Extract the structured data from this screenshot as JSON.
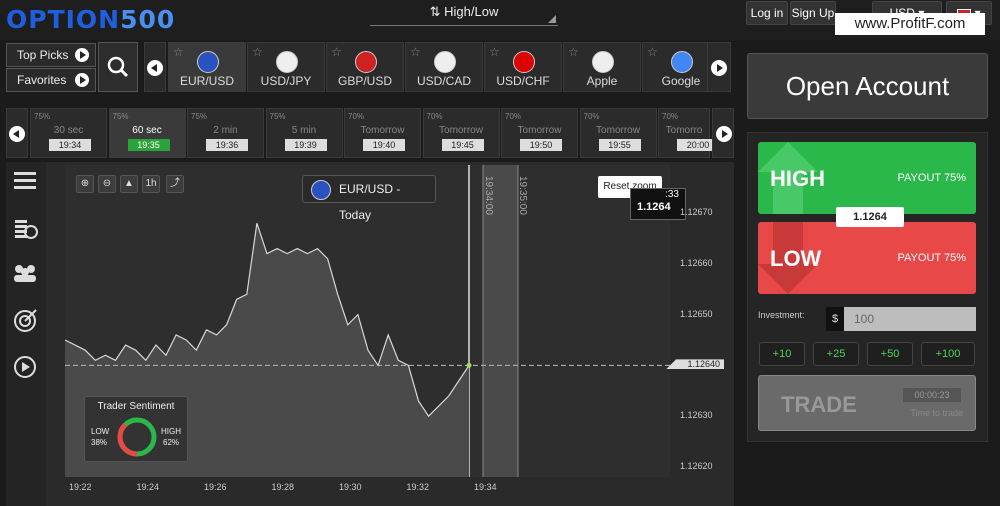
{
  "header": {
    "logo_a": "OPTION",
    "logo_b": "500",
    "asset_type": "High/Low",
    "login": "Log in",
    "signup": "Sign Up",
    "currency": "USD",
    "watermark": "www.ProfitF.com"
  },
  "picks": {
    "top": "Top Picks",
    "fav": "Favorites"
  },
  "assets": [
    {
      "label": "EUR/USD",
      "icon": "eu-us-flags"
    },
    {
      "label": "USD/JPY",
      "icon": "us-jp-flags"
    },
    {
      "label": "GBP/USD",
      "icon": "gb-us-flags"
    },
    {
      "label": "USD/CAD",
      "icon": "us-ca-flags"
    },
    {
      "label": "USD/CHF",
      "icon": "us-ch-flags"
    },
    {
      "label": "Apple",
      "icon": "apple-logo"
    },
    {
      "label": "Google",
      "icon": "google-logo"
    }
  ],
  "expiries": [
    {
      "pct": "75%",
      "label": "30 sec",
      "time": "19:34"
    },
    {
      "pct": "75%",
      "label": "60 sec",
      "time": "19:35"
    },
    {
      "pct": "75%",
      "label": "2 min",
      "time": "19:36"
    },
    {
      "pct": "75%",
      "label": "5 min",
      "time": "19:39"
    },
    {
      "pct": "70%",
      "label": "Tomorrow",
      "time": "19:40"
    },
    {
      "pct": "70%",
      "label": "Tomorrow",
      "time": "19:45"
    },
    {
      "pct": "70%",
      "label": "Tomorrow",
      "time": "19:50"
    },
    {
      "pct": "70%",
      "label": "Tomorrow",
      "time": "19:55"
    },
    {
      "pct": "70%",
      "label": "Tomorro",
      "time": "20:00"
    }
  ],
  "chart": {
    "title": "EUR/USD - Today",
    "reset_zoom": "Reset zoom",
    "zoom_period": "1h",
    "tag_top": ":33",
    "tag_price": "1.1264",
    "vline1": "19:34:00",
    "vline2": "19:35:00"
  },
  "chart_data": {
    "type": "area",
    "x_ticks": [
      "19:22",
      "19:24",
      "19:26",
      "19:28",
      "19:30",
      "19:32",
      "19:34"
    ],
    "y_ticks": [
      "1.12670",
      "1.12660",
      "1.12650",
      "1.12640",
      "1.12630",
      "1.12620"
    ],
    "ylim": [
      1.1262,
      1.1267
    ],
    "current": "1.12640",
    "series": [
      {
        "values": [
          1.12645,
          1.12644,
          1.12643,
          1.12641,
          1.12642,
          1.12641,
          1.12644,
          1.12643,
          1.12641,
          1.12644,
          1.12642,
          1.12646,
          1.12645,
          1.12643,
          1.12647,
          1.12646,
          1.12648,
          1.12653,
          1.12654,
          1.12668,
          1.12662,
          1.12663,
          1.12662,
          1.12663,
          1.12662,
          1.12663,
          1.12661,
          1.12654,
          1.12648,
          1.1265,
          1.12643,
          1.1264,
          1.12646,
          1.12641,
          1.1264,
          1.12633,
          1.1263,
          1.12632,
          1.12634,
          1.12637,
          1.1264
        ]
      }
    ]
  },
  "sentiment": {
    "title": "Trader Sentiment",
    "low": "LOW",
    "low_pct": "38%",
    "high": "HIGH",
    "high_pct": "62%",
    "low_value": 38
  },
  "trade": {
    "open_account": "Open Account",
    "high": "HIGH",
    "high_payout": "PAYOUT 75%",
    "low": "LOW",
    "low_payout": "PAYOUT 75%",
    "price": "1.1264",
    "investment_label": "Investment:",
    "dollar": "$",
    "investment_value": "100",
    "adds": [
      "+10",
      "+25",
      "+50",
      "+100"
    ],
    "trade_label": "TRADE",
    "timer": "00:00:23",
    "timer_label": "Time to trade"
  }
}
